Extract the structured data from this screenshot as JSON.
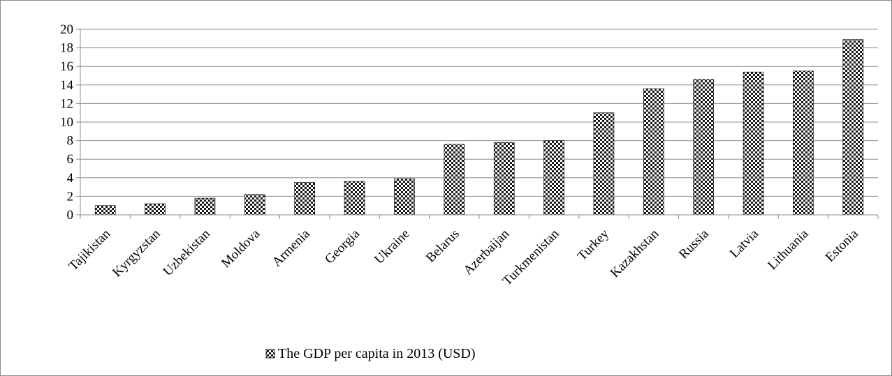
{
  "chart_data": {
    "type": "bar",
    "categories": [
      "Tajikistan",
      "Kyrgyzstan",
      "Uzbekistan",
      "Moldova",
      "Armenia",
      "Georgia",
      "Ukraine",
      "Belarus",
      "Azerbaijan",
      "Turkmenistan",
      "Turkey",
      "Kazakhstan",
      "Russia",
      "Latvia",
      "Lithuania",
      "Estonia"
    ],
    "series": [
      {
        "name": "The GDP per capita in 2013 (USD)",
        "values": [
          1.0,
          1.2,
          1.8,
          2.2,
          3.5,
          3.6,
          3.9,
          7.6,
          7.8,
          8.0,
          11.0,
          13.6,
          14.6,
          15.4,
          15.5,
          18.9
        ]
      }
    ],
    "ylim": [
      0,
      20
    ],
    "yticks": [
      0,
      2,
      4,
      6,
      8,
      10,
      12,
      14,
      16,
      18,
      20
    ],
    "grid": true,
    "legend_position": "bottom",
    "bar_fill": "black-white checker pattern"
  }
}
